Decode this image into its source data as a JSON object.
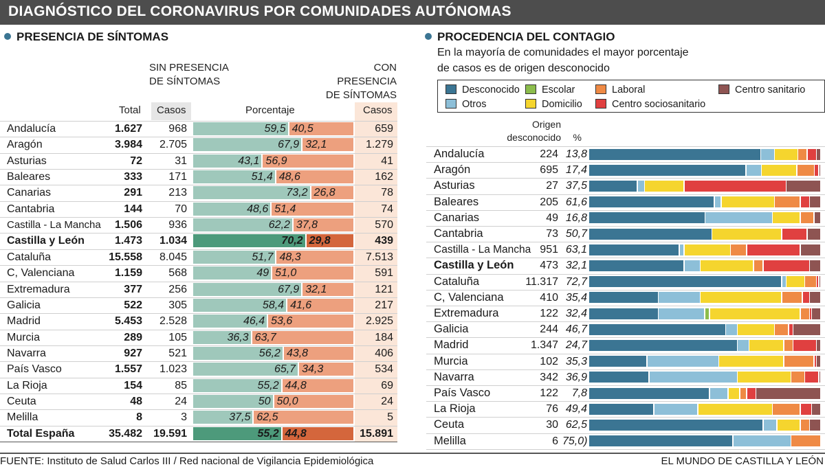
{
  "title": "DIAGNÓSTICO DEL CORONAVIRUS POR COMUNIDADES AUTÓNOMAS",
  "left": {
    "section_title": "PRESENCIA DE SÍNTOMAS",
    "header_sin": [
      "SIN PRESENCIA",
      "DE SÍNTOMAS"
    ],
    "header_con": [
      "CON PRESENCIA",
      "DE SÍNTOMAS"
    ],
    "col_total": "Total",
    "col_casos": "Casos",
    "col_porcentaje": "Porcentaje",
    "col_casos2": "Casos"
  },
  "right": {
    "section_title": "PROCEDENCIA DEL CONTAGIO",
    "subtitle_1": "En la mayoría de comunidades el mayor porcentaje",
    "subtitle_2": "de casos es de origen desconocido",
    "col_origen_1": "Origen",
    "col_origen_2": "desconocido",
    "col_pct": "%"
  },
  "legend": [
    {
      "label": "Desconocido",
      "color": "#3b7593"
    },
    {
      "label": "Escolar",
      "color": "#8cbd4c"
    },
    {
      "label": "Laboral",
      "color": "#ef8a45"
    },
    {
      "label": "Centro sanitario",
      "color": "#8e5452"
    },
    {
      "label": "Otros",
      "color": "#8dbfd8"
    },
    {
      "label": "Domicilio",
      "color": "#f5d52e"
    },
    {
      "label": "Centro sociosanitario",
      "color": "#e04040"
    }
  ],
  "chart_data": [
    {
      "type": "bar",
      "title": "PRESENCIA DE SÍNTOMAS",
      "columns": [
        "Total",
        "Casos",
        "Porcentaje",
        "Casos"
      ],
      "rows": [
        {
          "name": "Andalucía",
          "total": "1.627",
          "sin": "968",
          "pct_sin": "59,5",
          "pct_con": "40,5",
          "con": "659",
          "sin_value": 59.5
        },
        {
          "name": "Aragón",
          "total": "3.984",
          "sin": "2.705",
          "pct_sin": "67,9",
          "pct_con": "32,1",
          "con": "1.279",
          "sin_value": 67.9
        },
        {
          "name": "Asturias",
          "total": "72",
          "sin": "31",
          "pct_sin": "43,1",
          "pct_con": "56,9",
          "con": "41",
          "sin_value": 43.1
        },
        {
          "name": "Baleares",
          "total": "333",
          "sin": "171",
          "pct_sin": "51,4",
          "pct_con": "48,6",
          "con": "162",
          "sin_value": 51.4
        },
        {
          "name": "Canarias",
          "total": "291",
          "sin": "213",
          "pct_sin": "73,2",
          "pct_con": "26,8",
          "con": "78",
          "sin_value": 73.2
        },
        {
          "name": "Cantabria",
          "total": "144",
          "sin": "70",
          "pct_sin": "48,6",
          "pct_con": "51,4",
          "con": "74",
          "sin_value": 48.6
        },
        {
          "name": "Castilla - La Mancha",
          "total": "1.506",
          "sin": "936",
          "pct_sin": "62,2",
          "pct_con": "37,8",
          "con": "570",
          "sin_value": 62.2
        },
        {
          "name": "Castilla y León",
          "total": "1.473",
          "sin": "1.034",
          "pct_sin": "70,2",
          "pct_con": "29,8",
          "con": "439",
          "sin_value": 70.2,
          "highlight": true
        },
        {
          "name": "Cataluña",
          "total": "15.558",
          "sin": "8.045",
          "pct_sin": "51,7",
          "pct_con": "48,3",
          "con": "7.513",
          "sin_value": 51.7
        },
        {
          "name": "C, Valenciana",
          "total": "1.159",
          "sin": "568",
          "pct_sin": "49",
          "pct_con": "51,0",
          "con": "591",
          "sin_value": 49.0
        },
        {
          "name": "Extremadura",
          "total": "377",
          "sin": "256",
          "pct_sin": "67,9",
          "pct_con": "32,1",
          "con": "121",
          "sin_value": 67.9
        },
        {
          "name": "Galicia",
          "total": "522",
          "sin": "305",
          "pct_sin": "58,4",
          "pct_con": "41,6",
          "con": "217",
          "sin_value": 58.4
        },
        {
          "name": "Madrid",
          "total": "5.453",
          "sin": "2.528",
          "pct_sin": "46,4",
          "pct_con": "53,6",
          "con": "2.925",
          "sin_value": 46.4
        },
        {
          "name": "Murcia",
          "total": "289",
          "sin": "105",
          "pct_sin": "36,3",
          "pct_con": "63,7",
          "con": "184",
          "sin_value": 36.3
        },
        {
          "name": "Navarra",
          "total": "927",
          "sin": "521",
          "pct_sin": "56,2",
          "pct_con": "43,8",
          "con": "406",
          "sin_value": 56.2
        },
        {
          "name": "País Vasco",
          "total": "1.557",
          "sin": "1.023",
          "pct_sin": "65,7",
          "pct_con": "34,3",
          "con": "534",
          "sin_value": 65.7
        },
        {
          "name": "La Rioja",
          "total": "154",
          "sin": "85",
          "pct_sin": "55,2",
          "pct_con": "44,8",
          "con": "69",
          "sin_value": 55.2
        },
        {
          "name": "Ceuta",
          "total": "48",
          "sin": "24",
          "pct_sin": "50",
          "pct_con": "50,0",
          "con": "24",
          "sin_value": 50.0
        },
        {
          "name": "Melilla",
          "total": "8",
          "sin": "3",
          "pct_sin": "37,5",
          "pct_con": "62,5",
          "con": "5",
          "sin_value": 37.5
        },
        {
          "name": "Total España",
          "total": "35.482",
          "sin": "19.591",
          "pct_sin": "55,2",
          "pct_con": "44,8",
          "con": "15.891",
          "sin_value": 55.2,
          "total_row": true
        }
      ]
    },
    {
      "type": "bar",
      "title": "PROCEDENCIA DEL CONTAGIO",
      "stacked": true,
      "categories_order": [
        "Desconocido",
        "Otros",
        "Escolar",
        "Domicilio",
        "Laboral",
        "Centro sociosanitario",
        "Centro sanitario"
      ],
      "rows": [
        {
          "name": "Andalucía",
          "origen": "224",
          "pct": "13,8",
          "segments": [
            74,
            6,
            0,
            10,
            4,
            4,
            2
          ]
        },
        {
          "name": "Aragón",
          "origen": "695",
          "pct": "17,4",
          "segments": [
            71,
            7,
            0,
            16,
            8,
            2,
            1
          ]
        },
        {
          "name": "Asturias",
          "origen": "27",
          "pct": "37,5",
          "segments": [
            21,
            3,
            0,
            17,
            0,
            44,
            15
          ]
        },
        {
          "name": "Baleares",
          "origen": "205",
          "pct": "61,6",
          "segments": [
            54,
            3,
            0,
            23,
            11,
            4,
            5
          ]
        },
        {
          "name": "Canarias",
          "origen": "49",
          "pct": "16,8",
          "segments": [
            50,
            29,
            0,
            12,
            6,
            0,
            3
          ]
        },
        {
          "name": "Cantabria",
          "origen": "73",
          "pct": "50,7",
          "segments": [
            53,
            0,
            0,
            30,
            0,
            11,
            6
          ]
        },
        {
          "name": "Castilla - La Mancha",
          "origen": "951",
          "pct": "63,1",
          "segments": [
            39,
            2,
            0,
            20,
            7,
            23,
            9
          ]
        },
        {
          "name": "Castilla y León",
          "origen": "473",
          "pct": "32,1",
          "segments": [
            41,
            7,
            0,
            23,
            4,
            20,
            5
          ],
          "highlight": true
        },
        {
          "name": "Cataluña",
          "origen": "11.317",
          "pct": "72,7",
          "segments": [
            83,
            2,
            0,
            8,
            5,
            1,
            1
          ]
        },
        {
          "name": "C, Valenciana",
          "origen": "410",
          "pct": "35,4",
          "segments": [
            30,
            18,
            0,
            35,
            9,
            3,
            5
          ]
        },
        {
          "name": "Extremadura",
          "origen": "122",
          "pct": "32,4",
          "segments": [
            30,
            20,
            2,
            39,
            4,
            1,
            4
          ]
        },
        {
          "name": "Galicia",
          "origen": "244",
          "pct": "46,7",
          "segments": [
            59,
            5,
            0,
            16,
            6,
            2,
            12
          ]
        },
        {
          "name": "Madrid",
          "origen": "1.347",
          "pct": "24,7",
          "segments": [
            64,
            5,
            0,
            15,
            4,
            10,
            2
          ]
        },
        {
          "name": "Murcia",
          "origen": "102",
          "pct": "35,3",
          "segments": [
            25,
            31,
            0,
            28,
            13,
            1,
            2
          ]
        },
        {
          "name": "Navarra",
          "origen": "342",
          "pct": "36,9",
          "segments": [
            26,
            38,
            0,
            23,
            6,
            6,
            1
          ]
        },
        {
          "name": "País Vasco",
          "origen": "122",
          "pct": "7,8",
          "segments": [
            52,
            8,
            0,
            5,
            3,
            4,
            28
          ]
        },
        {
          "name": "La Rioja",
          "origen": "76",
          "pct": "49,4",
          "segments": [
            28,
            19,
            0,
            32,
            12,
            5,
            4
          ]
        },
        {
          "name": "Ceuta",
          "origen": "30",
          "pct": "62,5",
          "segments": [
            75,
            6,
            0,
            10,
            4,
            0,
            5
          ]
        },
        {
          "name": "Melilla",
          "origen": "6",
          "pct": "75,0)",
          "segments": [
            62,
            25,
            0,
            0,
            13,
            0,
            0
          ]
        }
      ]
    }
  ],
  "footer": {
    "source": "FUENTE: Instituto de Salud Carlos III / Red nacional de Vigilancia Epidemiológica",
    "credit": "EL MUNDO DE CASTILLA Y LEÓN"
  }
}
